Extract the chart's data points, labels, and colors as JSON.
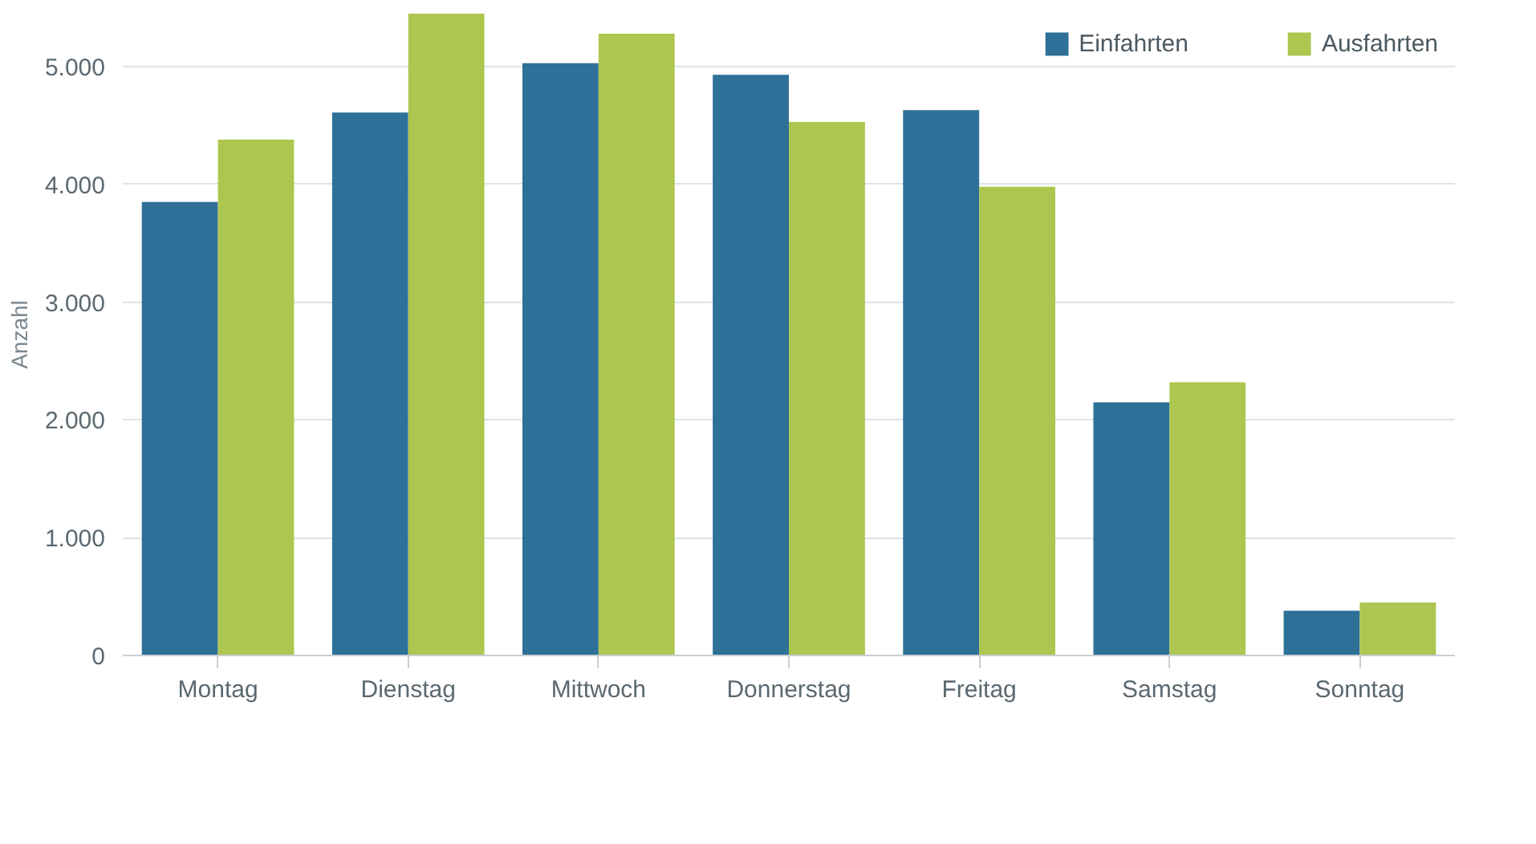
{
  "chart_data": {
    "type": "bar",
    "ylabel": "Anzahl",
    "categories": [
      "Montag",
      "Dienstag",
      "Mittwoch",
      "Donnerstag",
      "Freitag",
      "Samstag",
      "Sonntag"
    ],
    "series": [
      {
        "name": "Einfahrten",
        "color": "#2e7098",
        "values": [
          3850,
          4610,
          5030,
          4930,
          4630,
          2150,
          380
        ]
      },
      {
        "name": "Ausfahrten",
        "color": "#adc64f",
        "values": [
          4380,
          5450,
          5280,
          4530,
          3980,
          2320,
          450
        ]
      }
    ],
    "ylim": [
      0,
      5450
    ],
    "yticks": [
      0,
      {
        "value": 1000,
        "label": "1.000"
      },
      {
        "value": 2000,
        "label": "2.000"
      },
      {
        "value": 3000,
        "label": "3.000"
      },
      {
        "value": 4000,
        "label": "4.000"
      },
      {
        "value": 5000,
        "label": "5.000"
      }
    ],
    "grid": "y",
    "legend": "top right"
  }
}
